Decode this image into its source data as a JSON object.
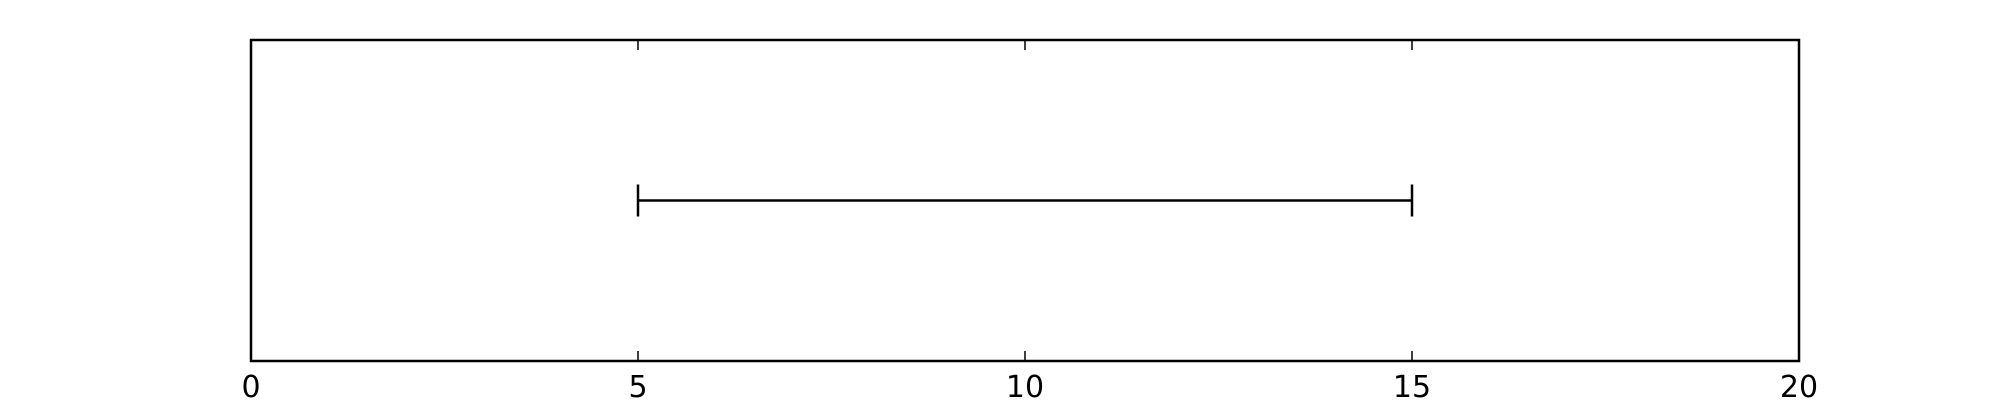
{
  "chart_data": {
    "type": "errorbar",
    "title": "",
    "xlabel": "",
    "ylabel": "",
    "xlim": [
      0,
      20
    ],
    "ylim": [
      -1,
      1
    ],
    "grid": false,
    "x_ticks": [
      0,
      5,
      10,
      15,
      20
    ],
    "x_tick_labels": [
      "0",
      "5",
      "10",
      "15",
      "20"
    ],
    "show_y_ticks": false,
    "intervals": [
      {
        "low": 5,
        "high": 15,
        "y": 0
      }
    ],
    "colors": {
      "line": "#000000",
      "frame": "#000000",
      "background": "#ffffff"
    }
  }
}
